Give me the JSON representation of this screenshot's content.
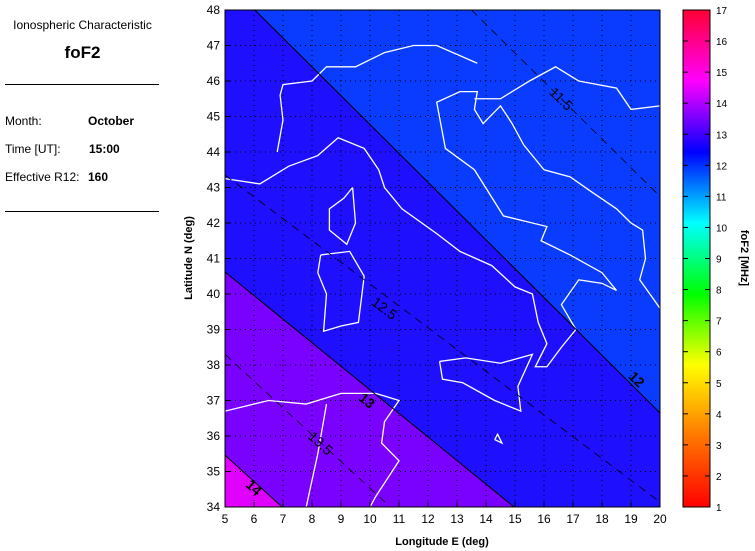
{
  "info_panel": {
    "title": "Ionospheric Characteristic",
    "variable": "foF2",
    "fields": [
      {
        "label": "Month:",
        "value": "October"
      },
      {
        "label": "Time [UT]:",
        "value": "15:00"
      },
      {
        "label": "Effective R12:",
        "value": "160"
      }
    ]
  },
  "chart_data": {
    "type": "contour-map",
    "xlabel": "Longitude E (deg)",
    "ylabel": "Latitude N (deg)",
    "xlim": [
      5,
      20
    ],
    "ylim": [
      34,
      48
    ],
    "xticks": [
      "5",
      "6",
      "7",
      "8",
      "9",
      "10",
      "11",
      "12",
      "13",
      "14",
      "15",
      "16",
      "17",
      "18",
      "19",
      "20"
    ],
    "yticks": [
      "34",
      "35",
      "36",
      "37",
      "38",
      "39",
      "40",
      "41",
      "42",
      "43",
      "44",
      "45",
      "46",
      "47",
      "48"
    ],
    "grid": true,
    "contours": [
      {
        "level": 11.5,
        "label": "11.5",
        "style": "dashed",
        "points": [
          [
            13.5,
            48
          ],
          [
            20,
            42.75
          ]
        ],
        "label_at": [
          16.6,
          45.5
        ]
      },
      {
        "level": 12,
        "label": "12",
        "style": "solid",
        "points": [
          [
            6.03,
            48
          ],
          [
            20,
            36.65
          ]
        ],
        "label_at": [
          19.2,
          37.6
        ]
      },
      {
        "level": 12.5,
        "label": "12.5",
        "style": "dashed",
        "points": [
          [
            5,
            43.35
          ],
          [
            19.9,
            34.2
          ]
        ],
        "label_at": [
          10.5,
          39.6
        ]
      },
      {
        "level": 13,
        "label": "13",
        "style": "solid",
        "points": [
          [
            5,
            40.62
          ],
          [
            14.97,
            34
          ]
        ],
        "label_at": [
          9.9,
          37.0
        ]
      },
      {
        "level": 13.5,
        "label": "13.5",
        "style": "dashed",
        "points": [
          [
            5,
            38.3
          ],
          [
            10.7,
            34
          ]
        ],
        "label_at": [
          8.3,
          35.8
        ]
      },
      {
        "level": 14,
        "label": "14",
        "style": "solid",
        "points": [
          [
            5,
            35.46
          ],
          [
            6.97,
            34
          ]
        ],
        "label_at": [
          6.0,
          34.55
        ]
      }
    ],
    "region_colors": {
      "below_12": "#0a3cff",
      "12_to_13": "#1e0fff",
      "13_to_14": "#7a00ff",
      "above_14": "#e000ff"
    },
    "colorbar": {
      "label": "foF2 [MHz]",
      "range": [
        1,
        17
      ],
      "ticks": [
        "1",
        "2",
        "3",
        "4",
        "5",
        "6",
        "7",
        "8",
        "9",
        "10",
        "11",
        "12",
        "13",
        "14",
        "15",
        "16",
        "17"
      ],
      "colormap": [
        "#ff0000",
        "#ff7700",
        "#ffff00",
        "#00ff00",
        "#00ffff",
        "#0000ff",
        "#ff00ff",
        "#ff0033"
      ]
    },
    "coastline_color": "#ffffff"
  }
}
